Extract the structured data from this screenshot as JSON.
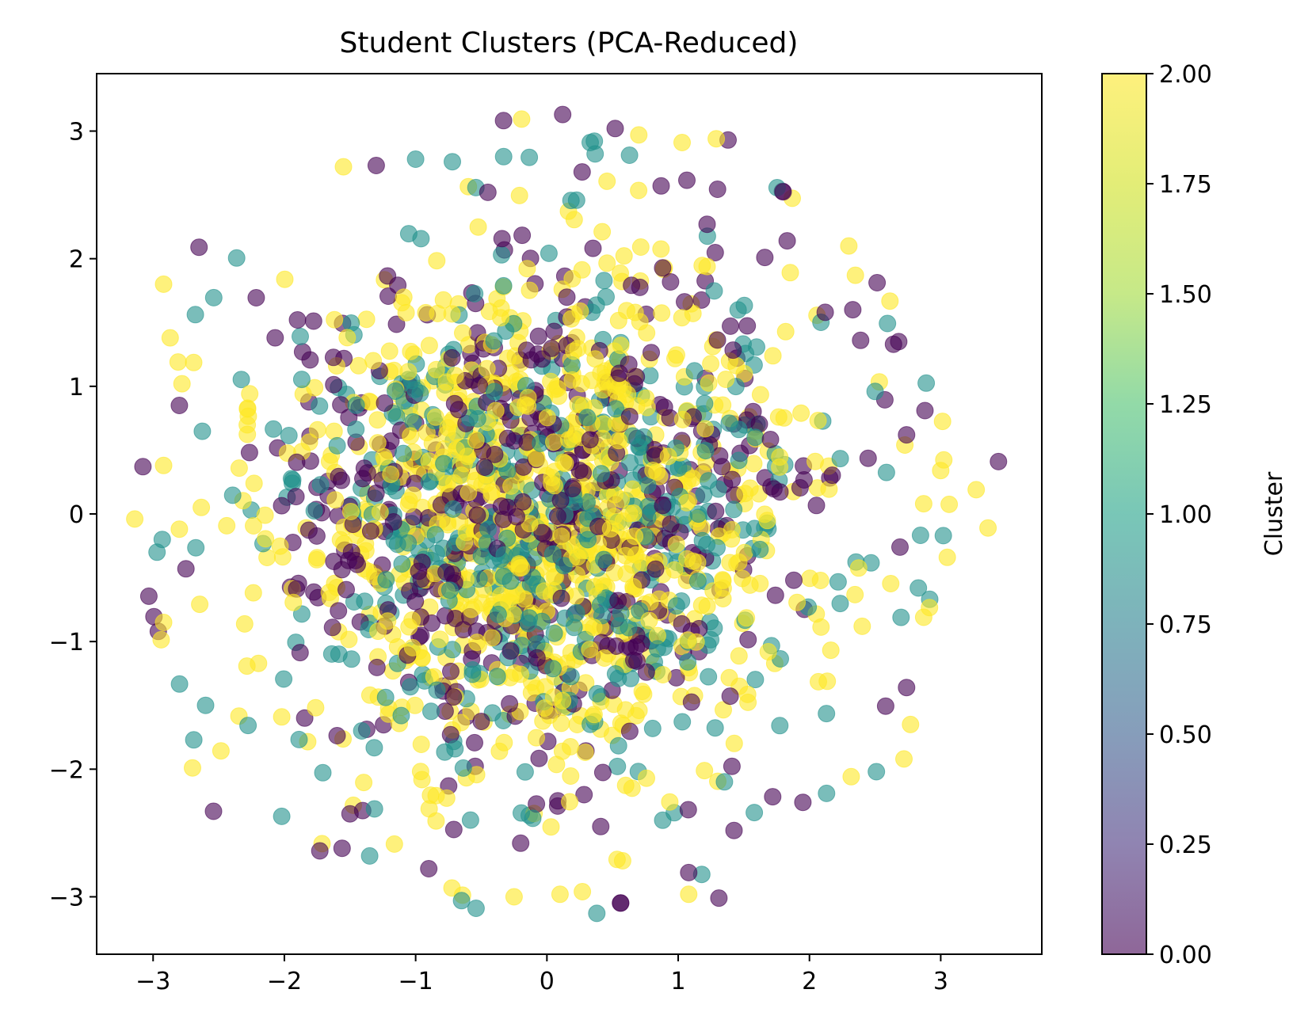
{
  "chart_data": {
    "type": "scatter",
    "title": "Student Clusters (PCA-Reduced)",
    "xlabel": "",
    "ylabel": "",
    "xlim": [
      -3.43,
      3.77
    ],
    "ylim": [
      -3.45,
      3.45
    ],
    "x_ticks": [
      -3,
      -2,
      -1,
      0,
      1,
      2,
      3
    ],
    "y_ticks": [
      -3,
      -2,
      -1,
      0,
      1,
      2,
      3
    ],
    "x_tick_labels": [
      "−3",
      "−2",
      "−1",
      "0",
      "1",
      "2",
      "3"
    ],
    "y_tick_labels": [
      "−3",
      "−2",
      "−1",
      "0",
      "1",
      "2",
      "3"
    ],
    "grid": false,
    "marker_alpha": 0.6,
    "colormap": "viridis",
    "colormap_stops": [
      "#440154",
      "#21918c",
      "#fde725"
    ],
    "colorbar": {
      "label": "Cluster",
      "range": [
        0.0,
        2.0
      ],
      "ticks": [
        0.0,
        0.25,
        0.5,
        0.75,
        1.0,
        1.25,
        1.5,
        1.75,
        2.0
      ],
      "tick_labels": [
        "0.00",
        "0.25",
        "0.50",
        "0.75",
        "1.00",
        "1.25",
        "1.50",
        "1.75",
        "2.00"
      ]
    },
    "n_points_approx": 2000,
    "distribution": "approximately standard bivariate normal centered at (0, 0), spread about ±3 on both axes",
    "points_sample": [
      {
        "x": 0.12,
        "y": 3.13,
        "cluster": 0
      },
      {
        "x": 0.52,
        "y": 3.02,
        "cluster": 0
      },
      {
        "x": 1.38,
        "y": 2.93,
        "cluster": 0
      },
      {
        "x": 0.7,
        "y": 2.97,
        "cluster": 2
      },
      {
        "x": 1.03,
        "y": 2.91,
        "cluster": 2
      },
      {
        "x": 1.29,
        "y": 2.94,
        "cluster": 2
      },
      {
        "x": -0.33,
        "y": 2.8,
        "cluster": 1
      },
      {
        "x": -1.0,
        "y": 2.78,
        "cluster": 1
      },
      {
        "x": -0.72,
        "y": 2.76,
        "cluster": 1
      },
      {
        "x": 0.33,
        "y": 2.91,
        "cluster": 1
      },
      {
        "x": -1.3,
        "y": 2.73,
        "cluster": 0
      },
      {
        "x": -1.55,
        "y": 2.72,
        "cluster": 2
      },
      {
        "x": -2.65,
        "y": 2.09,
        "cluster": 0
      },
      {
        "x": -2.92,
        "y": 1.8,
        "cluster": 2
      },
      {
        "x": -2.87,
        "y": 1.38,
        "cluster": 2
      },
      {
        "x": -2.8,
        "y": 0.85,
        "cluster": 0
      },
      {
        "x": -2.78,
        "y": 1.02,
        "cluster": 2
      },
      {
        "x": -2.92,
        "y": 0.38,
        "cluster": 2
      },
      {
        "x": -3.14,
        "y": -0.04,
        "cluster": 2
      },
      {
        "x": -2.97,
        "y": -0.3,
        "cluster": 1
      },
      {
        "x": -2.93,
        "y": -0.2,
        "cluster": 1
      },
      {
        "x": -2.75,
        "y": -0.43,
        "cluster": 0
      },
      {
        "x": -2.92,
        "y": -0.85,
        "cluster": 2
      },
      {
        "x": -2.6,
        "y": -1.5,
        "cluster": 1
      },
      {
        "x": -2.69,
        "y": -1.77,
        "cluster": 1
      },
      {
        "x": -2.7,
        "y": -1.99,
        "cluster": 2
      },
      {
        "x": -2.54,
        "y": -2.33,
        "cluster": 0
      },
      {
        "x": -2.02,
        "y": -2.37,
        "cluster": 1
      },
      {
        "x": -1.73,
        "y": -2.64,
        "cluster": 0
      },
      {
        "x": -1.56,
        "y": -2.62,
        "cluster": 0
      },
      {
        "x": -1.35,
        "y": -2.68,
        "cluster": 1
      },
      {
        "x": -0.9,
        "y": -2.78,
        "cluster": 0
      },
      {
        "x": -0.65,
        "y": -3.03,
        "cluster": 1
      },
      {
        "x": -0.54,
        "y": -3.09,
        "cluster": 1
      },
      {
        "x": -0.25,
        "y": -3.0,
        "cluster": 2
      },
      {
        "x": 0.1,
        "y": -2.98,
        "cluster": 2
      },
      {
        "x": 0.27,
        "y": -2.96,
        "cluster": 2
      },
      {
        "x": 0.38,
        "y": -3.13,
        "cluster": 1
      },
      {
        "x": 1.08,
        "y": -2.81,
        "cluster": 0
      },
      {
        "x": 1.31,
        "y": -3.01,
        "cluster": 0
      },
      {
        "x": 1.08,
        "y": -2.98,
        "cluster": 2
      },
      {
        "x": 1.58,
        "y": -2.34,
        "cluster": 1
      },
      {
        "x": 1.95,
        "y": -2.26,
        "cluster": 0
      },
      {
        "x": 2.13,
        "y": -2.19,
        "cluster": 1
      },
      {
        "x": 2.51,
        "y": -2.02,
        "cluster": 1
      },
      {
        "x": 2.72,
        "y": -1.92,
        "cluster": 2
      },
      {
        "x": 2.74,
        "y": -1.36,
        "cluster": 0
      },
      {
        "x": 2.77,
        "y": -1.65,
        "cluster": 2
      },
      {
        "x": 2.83,
        "y": -0.58,
        "cluster": 1
      },
      {
        "x": 2.87,
        "y": -0.81,
        "cluster": 2
      },
      {
        "x": 2.69,
        "y": -0.26,
        "cluster": 0
      },
      {
        "x": 3.02,
        "y": -0.17,
        "cluster": 1
      },
      {
        "x": 3.05,
        "y": -0.34,
        "cluster": 2
      },
      {
        "x": 2.87,
        "y": 0.08,
        "cluster": 2
      },
      {
        "x": 3.36,
        "y": -0.11,
        "cluster": 2
      },
      {
        "x": 3.27,
        "y": 0.19,
        "cluster": 2
      },
      {
        "x": 3.44,
        "y": 0.41,
        "cluster": 0
      },
      {
        "x": 3.0,
        "y": 0.34,
        "cluster": 2
      },
      {
        "x": 2.88,
        "y": 0.81,
        "cluster": 0
      },
      {
        "x": 2.74,
        "y": 0.62,
        "cluster": 0
      },
      {
        "x": 2.68,
        "y": 1.35,
        "cluster": 0
      },
      {
        "x": 2.64,
        "y": 1.33,
        "cluster": 0
      },
      {
        "x": 2.5,
        "y": 0.96,
        "cluster": 1
      },
      {
        "x": 2.39,
        "y": 1.36,
        "cluster": 0
      },
      {
        "x": 2.33,
        "y": 1.6,
        "cluster": 0
      },
      {
        "x": 2.35,
        "y": 1.87,
        "cluster": 2
      },
      {
        "x": 2.3,
        "y": 2.1,
        "cluster": 2
      },
      {
        "x": 2.12,
        "y": 1.58,
        "cluster": 0
      },
      {
        "x": 1.83,
        "y": 2.14,
        "cluster": 0
      },
      {
        "x": 1.66,
        "y": 2.01,
        "cluster": 0
      },
      {
        "x": 1.22,
        "y": 2.27,
        "cluster": 0
      },
      {
        "x": 0.87,
        "y": 2.57,
        "cluster": 0
      },
      {
        "x": -0.45,
        "y": 2.52,
        "cluster": 0
      },
      {
        "x": -1.9,
        "y": 1.52,
        "cluster": 0
      },
      {
        "x": -2.07,
        "y": 1.38,
        "cluster": 0
      },
      {
        "x": -1.5,
        "y": -2.35,
        "cluster": 0
      },
      {
        "x": -0.2,
        "y": -2.58,
        "cluster": 0
      },
      {
        "x": 0.41,
        "y": -2.45,
        "cluster": 0
      }
    ]
  }
}
